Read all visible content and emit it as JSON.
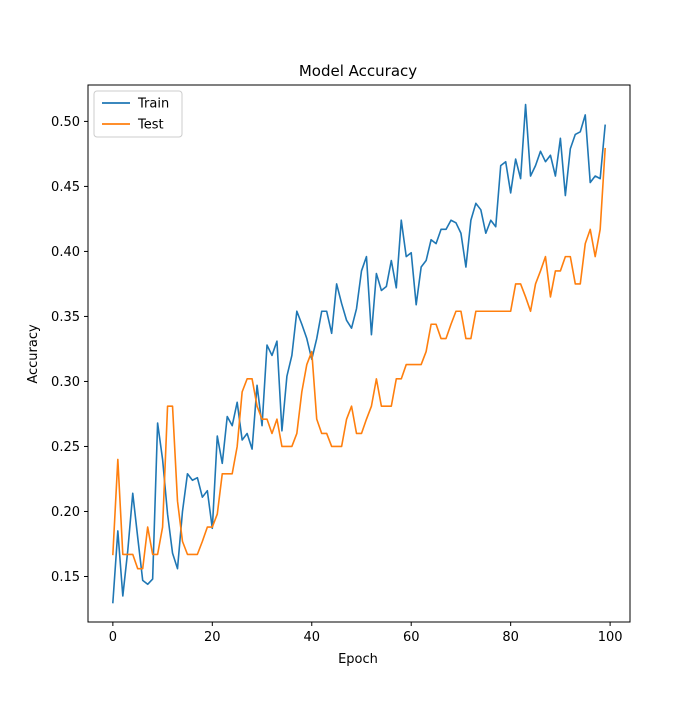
{
  "chart_data": {
    "type": "line",
    "title": "Model Accuracy",
    "xlabel": "Epoch",
    "ylabel": "Accuracy",
    "xlim": [
      -5,
      104
    ],
    "ylim": [
      0.115,
      0.528
    ],
    "xticks": [
      0,
      20,
      40,
      60,
      80,
      100
    ],
    "yticks": [
      0.15,
      0.2,
      0.25,
      0.3,
      0.35,
      0.4,
      0.45,
      0.5
    ],
    "grid": false,
    "legend_position": "top-left",
    "series": [
      {
        "name": "Train",
        "color": "#1f77b4",
        "values": [
          0.13,
          0.185,
          0.135,
          0.17,
          0.214,
          0.18,
          0.147,
          0.144,
          0.148,
          0.268,
          0.24,
          0.198,
          0.168,
          0.156,
          0.2,
          0.229,
          0.224,
          0.226,
          0.211,
          0.216,
          0.187,
          0.258,
          0.237,
          0.273,
          0.266,
          0.284,
          0.255,
          0.26,
          0.248,
          0.297,
          0.266,
          0.328,
          0.32,
          0.331,
          0.262,
          0.304,
          0.32,
          0.354,
          0.344,
          0.333,
          0.317,
          0.333,
          0.354,
          0.354,
          0.337,
          0.375,
          0.36,
          0.347,
          0.341,
          0.356,
          0.385,
          0.396,
          0.336,
          0.383,
          0.37,
          0.373,
          0.393,
          0.372,
          0.424,
          0.396,
          0.399,
          0.359,
          0.388,
          0.393,
          0.409,
          0.406,
          0.417,
          0.417,
          0.424,
          0.422,
          0.414,
          0.388,
          0.424,
          0.437,
          0.432,
          0.414,
          0.424,
          0.419,
          0.466,
          0.469,
          0.445,
          0.471,
          0.456,
          0.513,
          0.458,
          0.466,
          0.477,
          0.469,
          0.474,
          0.458,
          0.487,
          0.443,
          0.479,
          0.49,
          0.492,
          0.505,
          0.453,
          0.458,
          0.456,
          0.497
        ]
      },
      {
        "name": "Test",
        "color": "#ff7f0e",
        "values": [
          0.167,
          0.24,
          0.167,
          0.167,
          0.167,
          0.156,
          0.156,
          0.188,
          0.167,
          0.167,
          0.188,
          0.281,
          0.281,
          0.208,
          0.177,
          0.167,
          0.167,
          0.167,
          0.177,
          0.188,
          0.188,
          0.198,
          0.229,
          0.229,
          0.229,
          0.25,
          0.292,
          0.302,
          0.302,
          0.281,
          0.271,
          0.271,
          0.26,
          0.271,
          0.25,
          0.25,
          0.25,
          0.26,
          0.292,
          0.313,
          0.323,
          0.271,
          0.26,
          0.26,
          0.25,
          0.25,
          0.25,
          0.271,
          0.281,
          0.26,
          0.26,
          0.271,
          0.281,
          0.302,
          0.281,
          0.281,
          0.281,
          0.302,
          0.302,
          0.313,
          0.313,
          0.313,
          0.313,
          0.323,
          0.344,
          0.344,
          0.333,
          0.333,
          0.344,
          0.354,
          0.354,
          0.333,
          0.333,
          0.354,
          0.354,
          0.354,
          0.354,
          0.354,
          0.354,
          0.354,
          0.354,
          0.375,
          0.375,
          0.365,
          0.354,
          0.375,
          0.385,
          0.396,
          0.365,
          0.385,
          0.385,
          0.396,
          0.396,
          0.375,
          0.375,
          0.406,
          0.417,
          0.396,
          0.417,
          0.479
        ]
      }
    ]
  }
}
